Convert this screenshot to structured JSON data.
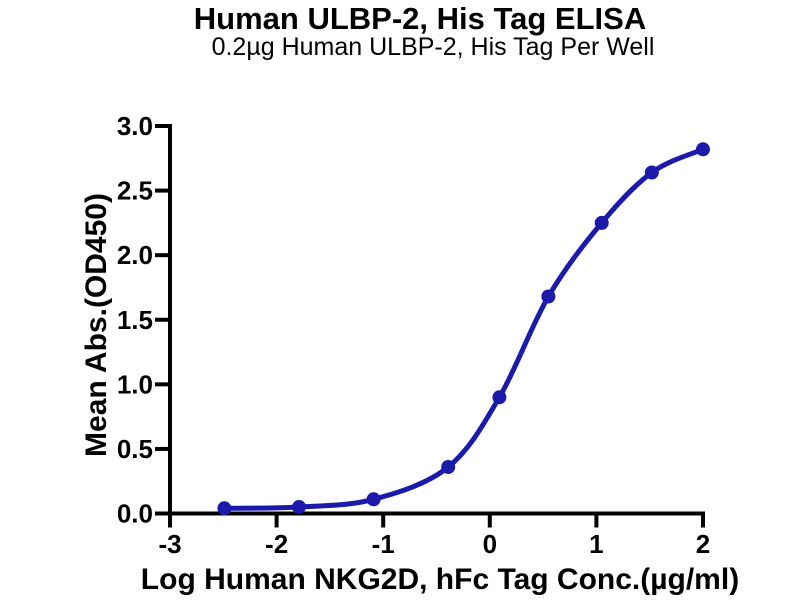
{
  "chart_data": {
    "type": "line",
    "title": "Human ULBP-2, His Tag ELISA",
    "subtitle": "0.2µg Human ULBP-2, His Tag Per Well",
    "xlabel": "Log Human NKG2D, hFc Tag Conc.(µg/ml)",
    "ylabel": "Mean Abs.(OD450)",
    "xlim": [
      -3,
      2
    ],
    "ylim": [
      0,
      3
    ],
    "xticks": {
      "values": [
        -3,
        -2,
        -1,
        0,
        1,
        2
      ],
      "labels": [
        "-3",
        "-2",
        "-1",
        "0",
        "1",
        "2"
      ]
    },
    "yticks": {
      "values": [
        0,
        0.5,
        1,
        1.5,
        2,
        2.5,
        3
      ],
      "labels": [
        "0.0",
        "0.5",
        "1.0",
        "1.5",
        "2.0",
        "2.5",
        "3.0"
      ]
    },
    "grid": false,
    "legend": "none",
    "background_color": "#ffffff",
    "axis_color": "#000000",
    "series": [
      {
        "x": [
          -2.49,
          -1.79,
          -1.09,
          -0.39,
          0.09,
          0.55,
          1.05,
          1.52,
          2.0
        ],
        "y": [
          0.04,
          0.05,
          0.11,
          0.36,
          0.9,
          1.68,
          2.25,
          2.64,
          2.82
        ],
        "color": "#1b1bab",
        "marker": "circle",
        "marker_size": 7,
        "line_style": "smooth"
      }
    ]
  }
}
